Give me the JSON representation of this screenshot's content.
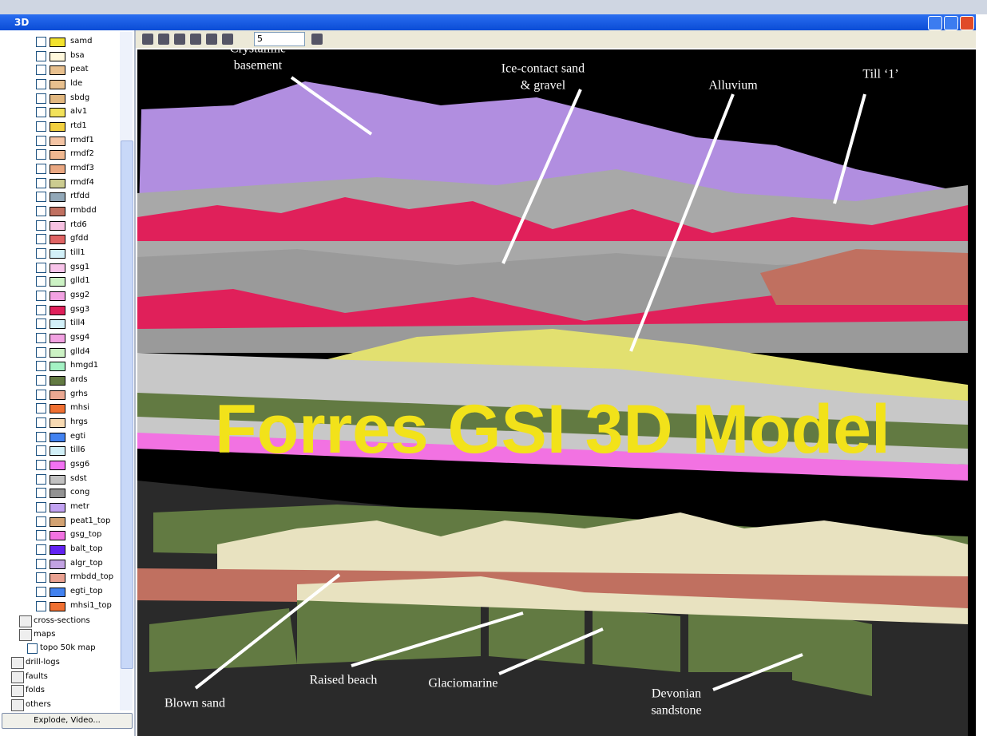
{
  "window": {
    "title": "3D"
  },
  "layers": [
    {
      "name": "samd",
      "color": "#f2e22e"
    },
    {
      "name": "bsa",
      "color": "#fff8dc"
    },
    {
      "name": "peat",
      "color": "#e8c08e"
    },
    {
      "name": "lde",
      "color": "#e8c08e"
    },
    {
      "name": "sbdg",
      "color": "#e2b880"
    },
    {
      "name": "alv1",
      "color": "#f2e25a"
    },
    {
      "name": "rtd1",
      "color": "#f2d040"
    },
    {
      "name": "rmdf1",
      "color": "#f4c4a4"
    },
    {
      "name": "rmdf2",
      "color": "#f0b890"
    },
    {
      "name": "rmdf3",
      "color": "#eaa882"
    },
    {
      "name": "rmdf4",
      "color": "#cccc90"
    },
    {
      "name": "rtfdd",
      "color": "#92a8b8"
    },
    {
      "name": "rmbdd",
      "color": "#c07060"
    },
    {
      "name": "rtd6",
      "color": "#f8c2e2"
    },
    {
      "name": "gfdd",
      "color": "#e06464"
    },
    {
      "name": "till1",
      "color": "#d2f0f8"
    },
    {
      "name": "gsg1",
      "color": "#f8c4ea"
    },
    {
      "name": "glld1",
      "color": "#ccf2c4"
    },
    {
      "name": "gsg2",
      "color": "#f2a2e2"
    },
    {
      "name": "gsg3",
      "color": "#e0205a"
    },
    {
      "name": "till4",
      "color": "#d2f0f8"
    },
    {
      "name": "gsg4",
      "color": "#f2a2e2"
    },
    {
      "name": "glld4",
      "color": "#ccf2c4"
    },
    {
      "name": "hmgd1",
      "color": "#a4f2c4"
    },
    {
      "name": "ards",
      "color": "#627a42"
    },
    {
      "name": "grhs",
      "color": "#eaa892"
    },
    {
      "name": "mhsi",
      "color": "#f07032"
    },
    {
      "name": "hrgs",
      "color": "#f8dab2"
    },
    {
      "name": "egti",
      "color": "#4282f0"
    },
    {
      "name": "till6",
      "color": "#d2f0f8"
    },
    {
      "name": "gsg6",
      "color": "#f272f2"
    },
    {
      "name": "sdst",
      "color": "#c2c2c2"
    },
    {
      "name": "cong",
      "color": "#929292"
    },
    {
      "name": "metr",
      "color": "#c2a2f2"
    },
    {
      "name": "peat1_top",
      "color": "#d2a272"
    },
    {
      "name": "gsg_top",
      "color": "#f272e2"
    },
    {
      "name": "balt_top",
      "color": "#6222f2"
    },
    {
      "name": "algr_top",
      "color": "#c2a2e2"
    },
    {
      "name": "rmbdd_top",
      "color": "#eaa292"
    },
    {
      "name": "egti_top",
      "color": "#4282f0"
    },
    {
      "name": "mhsi1_top",
      "color": "#f07032"
    }
  ],
  "tree": [
    {
      "label": "cross-sections"
    },
    {
      "label": "maps"
    },
    {
      "label": "topo 50k map"
    },
    {
      "label": "drill-logs"
    },
    {
      "label": "faults"
    },
    {
      "label": "folds"
    },
    {
      "label": "others"
    }
  ],
  "button": "Explode, Video...",
  "toolbar": {
    "value": "5"
  },
  "view": {
    "title": "Forres GSI 3D Model",
    "annotations": [
      {
        "lines": [
          "Crystalline",
          "basement"
        ]
      },
      {
        "lines": [
          "Ice-contact sand",
          "& gravel"
        ]
      },
      {
        "lines": [
          "Alluvium"
        ]
      },
      {
        "lines": [
          "Till ‘1’"
        ]
      },
      {
        "lines": [
          "Blown sand"
        ]
      },
      {
        "lines": [
          "Raised beach"
        ]
      },
      {
        "lines": [
          "Glaciomarine"
        ]
      },
      {
        "lines": [
          "Devonian",
          "sandstone"
        ]
      }
    ]
  }
}
